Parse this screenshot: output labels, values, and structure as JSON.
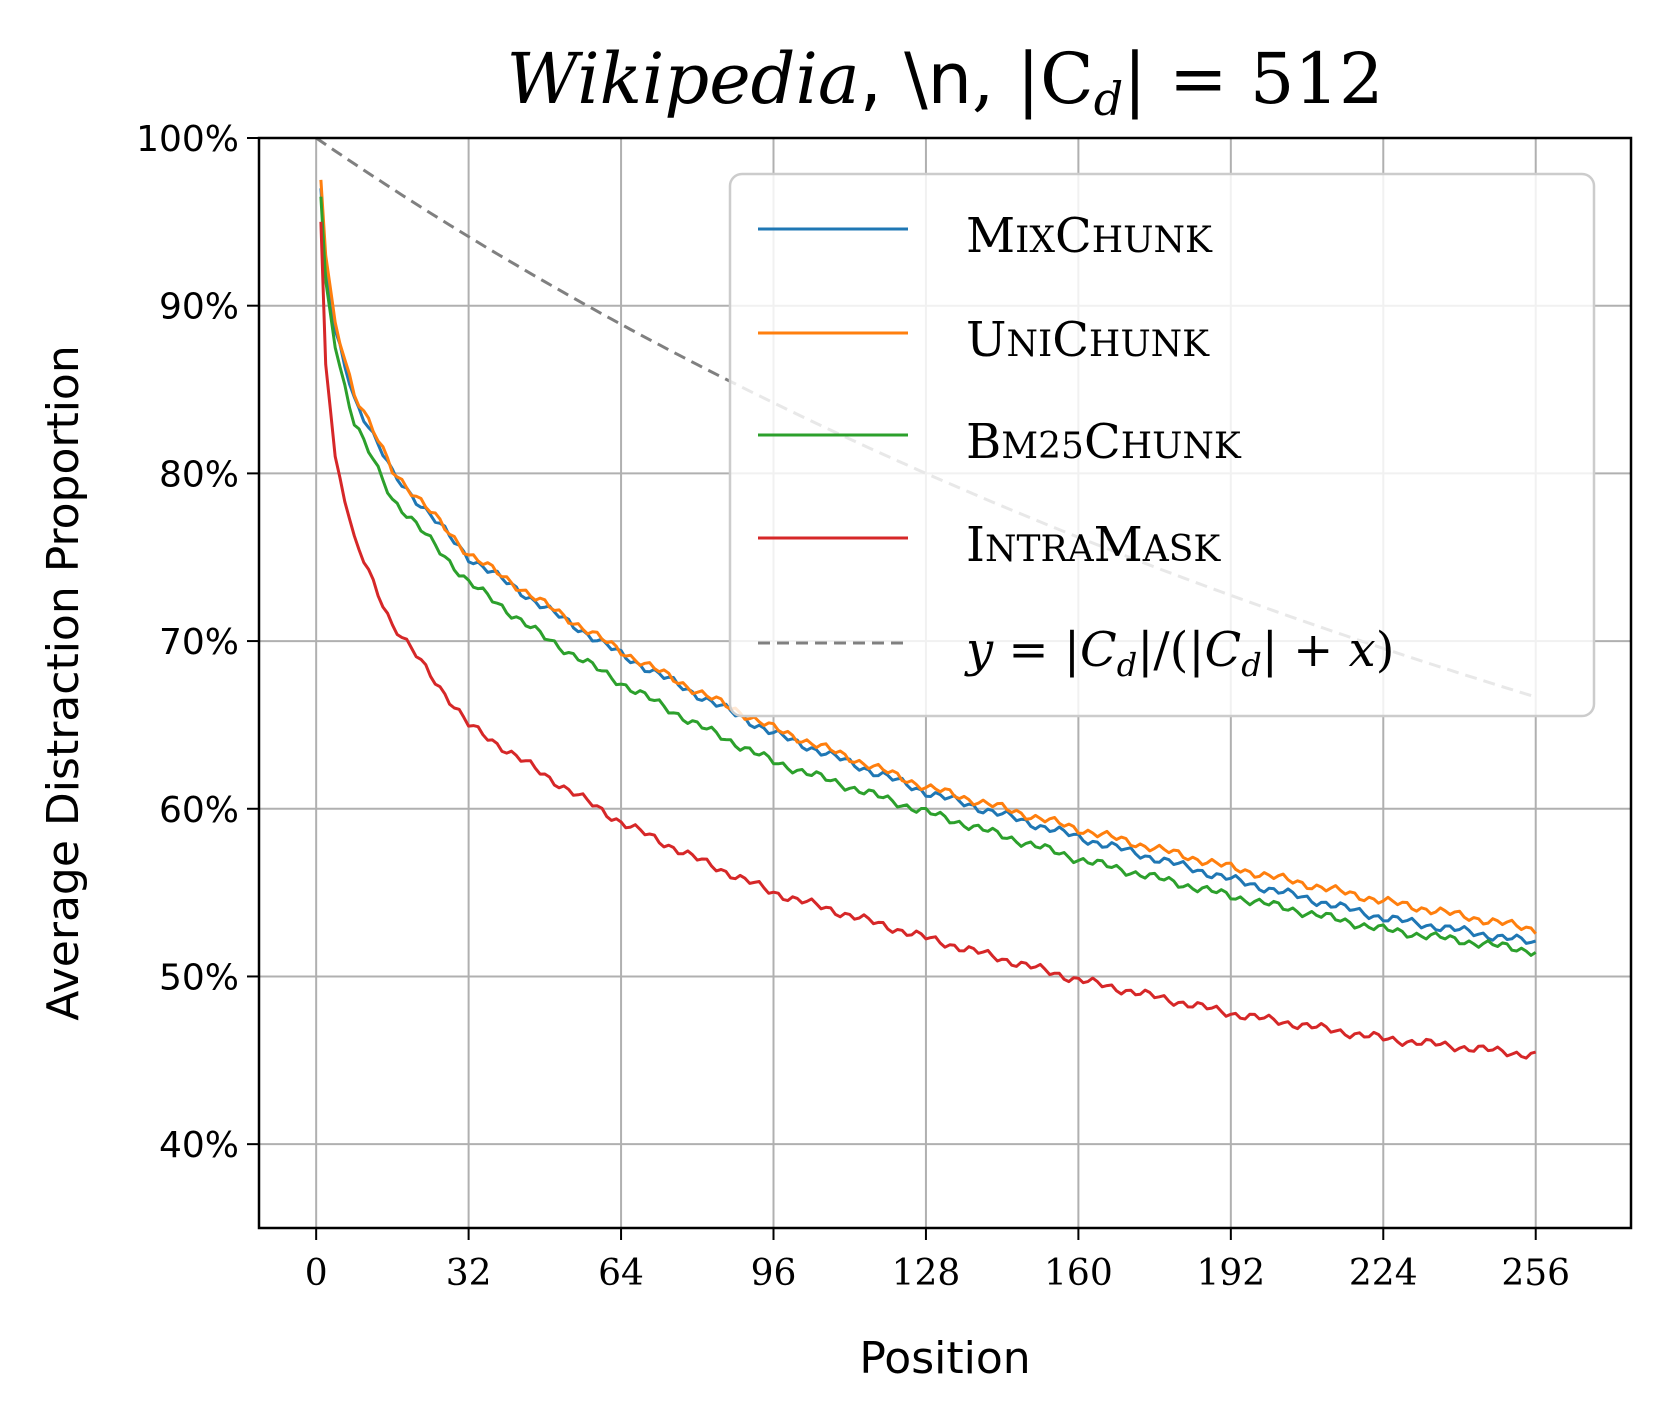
{
  "chart_data": {
    "type": "line",
    "title_parts": {
      "dataset": "Wikipedia",
      "sep1": ", ",
      "delimiter": "\\n",
      "sep2": ", |C",
      "sub": "d",
      "rest": "| = 512"
    },
    "xlabel": "Position",
    "ylabel": "Average Distraction Proportion",
    "xlim": [
      -12,
      276
    ],
    "ylim": [
      35,
      100
    ],
    "xticks": [
      0,
      32,
      64,
      96,
      128,
      160,
      192,
      224,
      256
    ],
    "xtick_labels": [
      "0",
      "32",
      "64",
      "96",
      "128",
      "160",
      "192",
      "224",
      "256"
    ],
    "yticks": [
      40,
      50,
      60,
      70,
      80,
      90,
      100
    ],
    "ytick_labels": [
      "40%",
      "50%",
      "60%",
      "70%",
      "80%",
      "90%",
      "100%"
    ],
    "grid": true,
    "legend_position": "top-right",
    "x": [
      1,
      2,
      4,
      8,
      16,
      32,
      48,
      64,
      80,
      96,
      128,
      160,
      192,
      224,
      256
    ],
    "series": [
      {
        "name": "MixChunk",
        "name_first": "M",
        "name_first_rest": "IX",
        "name_second": "C",
        "name_second_rest": "HUNK",
        "color": "#1f77b4",
        "values": [
          97.0,
          92.5,
          88.5,
          84.5,
          80.0,
          75.0,
          72.0,
          69.2,
          66.8,
          64.5,
          61.0,
          58.3,
          55.8,
          53.5,
          52.0
        ]
      },
      {
        "name": "UniChunk",
        "name_first": "U",
        "name_first_rest": "NI",
        "name_second": "C",
        "name_second_rest": "HUNK",
        "color": "#ff7f0e",
        "values": [
          97.5,
          93.0,
          89.0,
          84.8,
          80.2,
          75.2,
          72.2,
          69.4,
          67.0,
          64.8,
          61.3,
          58.8,
          56.5,
          54.5,
          52.8
        ]
      },
      {
        "name": "Bm25Chunk",
        "name_first": "B",
        "name_first_rest": "M25",
        "name_second": "C",
        "name_second_rest": "HUNK",
        "color": "#2ca02c",
        "values": [
          96.5,
          91.5,
          87.5,
          83.0,
          78.5,
          73.5,
          70.2,
          67.5,
          65.0,
          62.8,
          59.8,
          57.0,
          54.8,
          52.8,
          51.5
        ]
      },
      {
        "name": "IntraMask",
        "name_first": "I",
        "name_first_rest": "NTRA",
        "name_second": "M",
        "name_second_rest": "ASK",
        "color": "#d62728",
        "values": [
          95.0,
          86.5,
          81.0,
          76.0,
          71.0,
          65.0,
          62.0,
          59.2,
          57.0,
          55.0,
          52.3,
          49.8,
          47.8,
          46.3,
          45.3
        ]
      },
      {
        "name": "y = |Cd|/(|Cd| + x)",
        "formula_y": "y",
        "formula_eq": " = |",
        "formula_c": "C",
        "formula_sub": "d",
        "formula_mid": "|/(|",
        "formula_c2": "C",
        "formula_sub2": "d",
        "formula_plus": "| + ",
        "formula_x": "x",
        "formula_end": ")",
        "color": "#808080",
        "cd": 512
      }
    ]
  }
}
